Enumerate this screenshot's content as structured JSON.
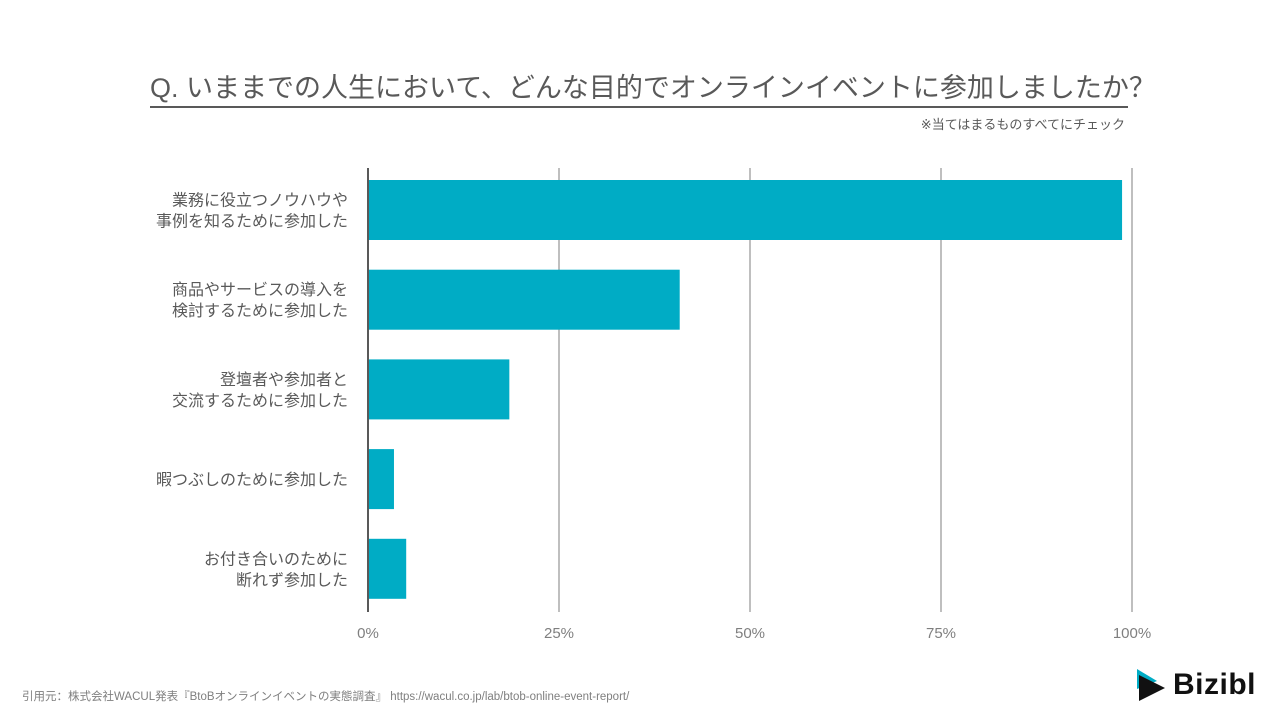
{
  "title": "Q. いままでの人生において、どんな目的でオンラインイベントに参加しましたか？",
  "note": "※当てはまるものすべてにチェック",
  "source": "引用元：株式会社WACUL発表『BtoBオンラインイベントの実態調査』 https://wacul.co.jp/lab/btob-online-event-report/",
  "logo": {
    "text": "Bizibl"
  },
  "chart_data": {
    "type": "bar",
    "orientation": "horizontal",
    "categories": [
      [
        "業務に役立つノウハウや",
        "事例を知るために参加した"
      ],
      [
        "商品やサービスの導入を",
        "検討するために参加した"
      ],
      [
        "登壇者や参加者と",
        "交流するために参加した"
      ],
      [
        "暇つぶしのために参加した"
      ],
      [
        "お付き合いのために",
        "断れず参加した"
      ]
    ],
    "values": [
      98.7,
      40.8,
      18.5,
      3.4,
      5.0
    ],
    "xlim": [
      0,
      100
    ],
    "xticks": [
      0,
      25,
      50,
      75,
      100
    ],
    "xtick_labels": [
      "0%",
      "25%",
      "50%",
      "75%",
      "100%"
    ],
    "grid": true,
    "bar_color": "#00ACC5"
  }
}
